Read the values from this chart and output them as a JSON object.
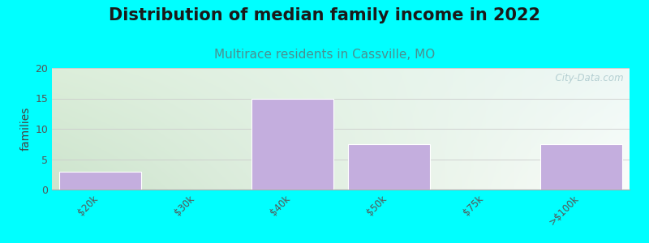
{
  "title": "Distribution of median family income in 2022",
  "subtitle": "Multirace residents in Cassville, MO",
  "categories": [
    "$20k",
    "$30k",
    "$40k",
    "$50k",
    "$75k",
    ">$100k"
  ],
  "values": [
    3,
    0,
    15,
    7.5,
    0,
    7.5
  ],
  "bar_color": "#c4aede",
  "bar_edgecolor": "#c4aede",
  "ylim": [
    0,
    20
  ],
  "yticks": [
    0,
    5,
    10,
    15,
    20
  ],
  "ylabel": "families",
  "title_fontsize": 15,
  "subtitle_fontsize": 11,
  "title_color": "#1a1a1a",
  "subtitle_color": "#4a9090",
  "ylabel_color": "#444444",
  "bg_outer": "#00ffff",
  "watermark": "  City-Data.com",
  "bar_width": 0.85,
  "grid_color": "#cccccc",
  "tick_color": "#555555"
}
